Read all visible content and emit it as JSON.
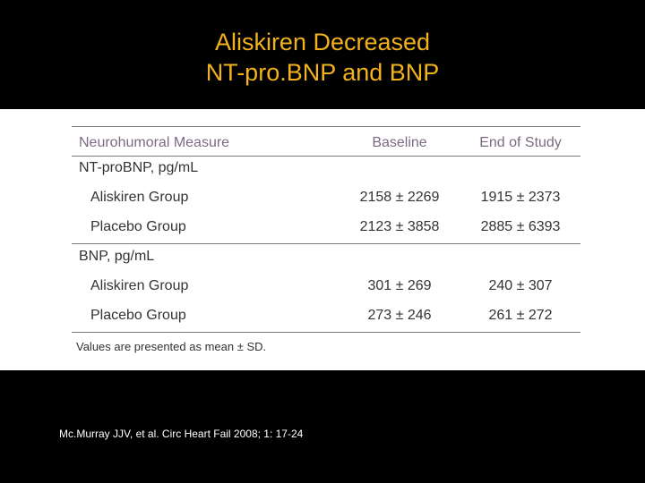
{
  "slide": {
    "title_line1": "Aliskiren Decreased",
    "title_line2": "NT-pro.BNP and BNP",
    "citation": "Mc.Murray JJV, et al. Circ Heart Fail 2008; 1: 17-24"
  },
  "table": {
    "headers": [
      "Neurohumoral Measure",
      "Baseline",
      "End of Study"
    ],
    "sections": [
      {
        "label": "NT-proBNP, pg/mL",
        "rows": [
          {
            "group": "Aliskiren Group",
            "baseline": "2158 ± 2269",
            "end": "1915 ± 2373"
          },
          {
            "group": "Placebo Group",
            "baseline": "2123 ± 3858",
            "end": "2885 ± 6393"
          }
        ]
      },
      {
        "label": "BNP, pg/mL",
        "rows": [
          {
            "group": "Aliskiren Group",
            "baseline": "301 ± 269",
            "end": "240 ± 307"
          },
          {
            "group": "Placebo Group",
            "baseline": "273 ± 246",
            "end": "261 ± 272"
          }
        ]
      }
    ],
    "footnote": "Values are presented as mean ± SD."
  },
  "colors": {
    "background": "#000000",
    "title": "#f2b21b",
    "header_text": "#7c6a84",
    "body_text": "#333333",
    "citation": "#ffffff"
  }
}
